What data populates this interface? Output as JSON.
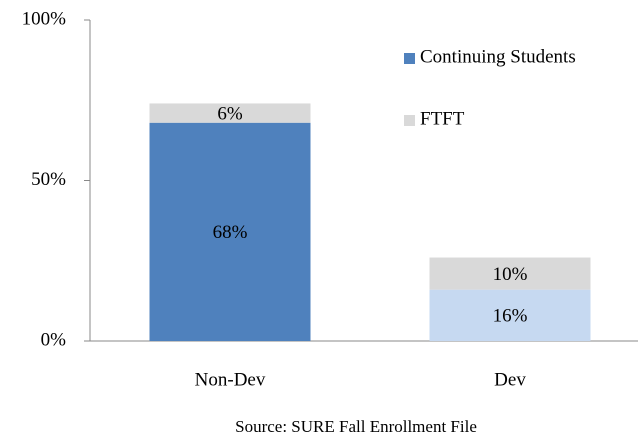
{
  "chart_data": {
    "type": "stacked_bar",
    "categories": [
      "Non-Dev",
      "Dev"
    ],
    "series": [
      {
        "name": "Continuing Students",
        "color": "#4f81bd",
        "colors": [
          "#4f81bd",
          "#c6d9f1"
        ],
        "values": [
          68,
          16
        ],
        "value_labels": [
          "68%",
          "16%"
        ]
      },
      {
        "name": "FTFT",
        "color": "#d9d9d9",
        "colors": [
          "#d9d9d9",
          "#d9d9d9"
        ],
        "values": [
          6,
          10
        ],
        "value_labels": [
          "6%",
          "10%"
        ]
      }
    ],
    "ylim": [
      0,
      100
    ],
    "yticks": [
      {
        "value": 0,
        "label": "0%"
      },
      {
        "value": 50,
        "label": "50%"
      },
      {
        "value": 100,
        "label": "100%"
      }
    ],
    "legend": "upper right",
    "source": "Source: SURE Fall Enrollment File"
  }
}
